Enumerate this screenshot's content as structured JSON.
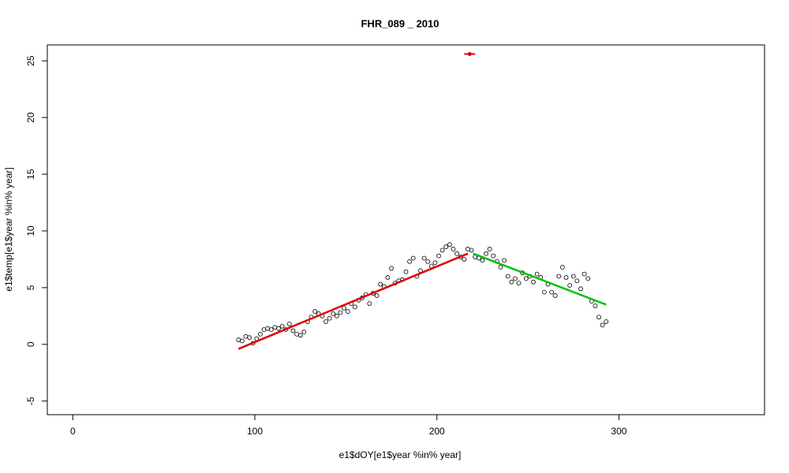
{
  "chart_data": {
    "type": "scatter",
    "title": "FHR_089 _ 2010",
    "xlabel": "e1$dOY[e1$year %in% year]",
    "ylabel": "e1$temp[e1$year %in% year]",
    "x": [
      91,
      93,
      95,
      97,
      99,
      101,
      103,
      105,
      107,
      109,
      111,
      113,
      115,
      117,
      119,
      121,
      123,
      125,
      127,
      129,
      131,
      133,
      135,
      137,
      139,
      141,
      143,
      145,
      147,
      149,
      151,
      153,
      155,
      157,
      159,
      161,
      163,
      165,
      167,
      169,
      171,
      173,
      175,
      177,
      179,
      181,
      183,
      185,
      187,
      189,
      191,
      193,
      195,
      197,
      199,
      201,
      203,
      205,
      207,
      209,
      211,
      213,
      215,
      217,
      219,
      221,
      223,
      225,
      227,
      229,
      231,
      233,
      235,
      237,
      239,
      241,
      243,
      245,
      247,
      249,
      251,
      253,
      255,
      257,
      259,
      261,
      263,
      265,
      267,
      269,
      271,
      273,
      275,
      277,
      279,
      281,
      283,
      285,
      287,
      289,
      291,
      293
    ],
    "values": [
      0.4,
      0.3,
      0.7,
      0.6,
      0.1,
      0.5,
      0.9,
      1.3,
      1.4,
      1.3,
      1.5,
      1.4,
      1.6,
      1.3,
      1.8,
      1.2,
      0.9,
      0.8,
      1.1,
      2.0,
      2.4,
      2.9,
      2.7,
      2.5,
      2.0,
      2.3,
      2.7,
      2.5,
      2.8,
      3.2,
      2.9,
      3.6,
      3.3,
      3.9,
      4.1,
      4.4,
      3.6,
      4.5,
      4.3,
      5.3,
      5.1,
      5.9,
      6.7,
      5.4,
      5.6,
      5.7,
      6.4,
      7.3,
      7.6,
      6.0,
      6.5,
      7.6,
      7.3,
      6.9,
      7.2,
      7.8,
      8.3,
      8.6,
      8.8,
      8.4,
      8.0,
      7.7,
      7.5,
      8.4,
      8.3,
      7.7,
      7.6,
      7.4,
      8.0,
      8.4,
      7.8,
      7.3,
      6.8,
      7.4,
      6.0,
      5.5,
      5.8,
      5.4,
      6.3,
      5.8,
      6.0,
      5.5,
      6.2,
      5.9,
      4.6,
      5.3,
      4.6,
      4.3,
      6.0,
      6.8,
      5.9,
      5.2,
      6.0,
      5.6,
      4.9,
      6.2,
      5.8,
      3.8,
      3.4,
      2.4,
      1.7,
      2.0
    ],
    "fits": [
      {
        "color": "#e00000",
        "x": [
          91,
          217
        ],
        "values": [
          -0.4,
          8.0
        ]
      },
      {
        "color": "#00c000",
        "x": [
          220,
          293
        ],
        "values": [
          8.0,
          3.5
        ]
      }
    ],
    "marker": {
      "color": "#e00000",
      "x": [
        215,
        221
      ],
      "values": [
        25.6,
        25.6
      ]
    },
    "xlim": [
      -14,
      380
    ],
    "ylim": [
      -6.2,
      26.4
    ],
    "xticks": [
      0,
      100,
      200,
      300
    ],
    "yticks": [
      -5,
      0,
      5,
      10,
      15,
      20,
      25
    ]
  }
}
